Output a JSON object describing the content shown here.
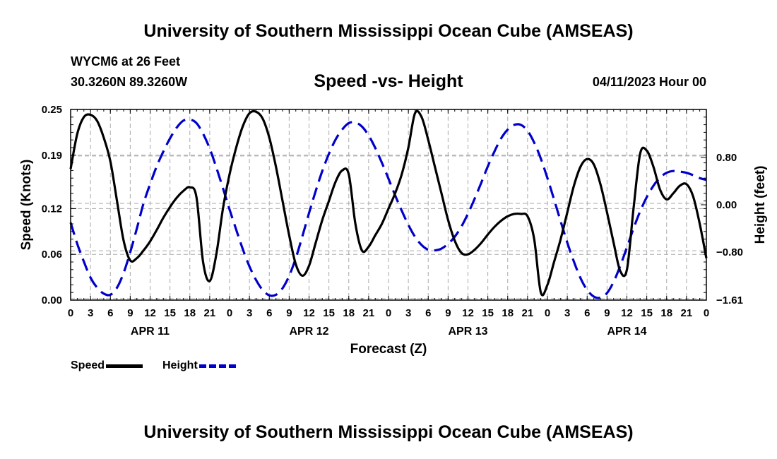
{
  "header": {
    "title": "University of Southern Mississippi Ocean Cube (AMSEAS)",
    "station": "WYCM6 at 26 Feet",
    "coords": "30.3260N  89.3260W",
    "subtitle": "Speed -vs- Height",
    "datetime": "04/11/2023 Hour 00"
  },
  "footer": {
    "title": "University of Southern Mississippi Ocean Cube (AMSEAS)"
  },
  "legend": {
    "speed_label": "Speed",
    "height_label": "Height"
  },
  "colors": {
    "speed": "#000000",
    "height": "#0000cc",
    "grid": "#aaaaaa"
  },
  "chart_data": {
    "type": "line",
    "title": "Speed -vs- Height",
    "xlabel": "Forecast (Z)",
    "ylabel_left": "Speed (Knots)",
    "ylabel_right": "Height (feet)",
    "x_unit": "hours from 04/11/2023 00Z",
    "xlim": [
      0,
      96
    ],
    "ylim_left": [
      0,
      0.25
    ],
    "ylim_right": [
      -1.61,
      1.61
    ],
    "x_ticks": [
      0,
      3,
      6,
      9,
      12,
      15,
      18,
      21,
      24,
      27,
      30,
      33,
      36,
      39,
      42,
      45,
      48,
      51,
      54,
      57,
      60,
      63,
      66,
      69,
      72,
      75,
      78,
      81,
      84,
      87,
      90,
      93,
      96
    ],
    "x_tick_labels": [
      "0",
      "3",
      "6",
      "9",
      "12",
      "15",
      "18",
      "21",
      "0",
      "3",
      "6",
      "9",
      "12",
      "15",
      "18",
      "21",
      "0",
      "3",
      "6",
      "9",
      "12",
      "15",
      "18",
      "21",
      "0",
      "3",
      "6",
      "9",
      "12",
      "15",
      "18",
      "21",
      "0"
    ],
    "date_labels": [
      {
        "x": 12,
        "label": "APR 11"
      },
      {
        "x": 36,
        "label": "APR 12"
      },
      {
        "x": 60,
        "label": "APR 13"
      },
      {
        "x": 84,
        "label": "APR 14"
      }
    ],
    "y_left_ticks": [
      0.0,
      0.06,
      0.12,
      0.19,
      0.25
    ],
    "y_left_tick_labels": [
      "0.00",
      "0.06",
      "0.12",
      "0.19",
      "0.25"
    ],
    "y_right_ticks": [
      -1.61,
      -0.8,
      0.0,
      0.8
    ],
    "y_right_tick_labels": [
      "−1.61",
      "−0.80",
      "0.00",
      "0.80"
    ],
    "series": [
      {
        "name": "Speed",
        "axis": "left",
        "style": "solid",
        "x": [
          0,
          1,
          2,
          3,
          4,
          5,
          6,
          7,
          8,
          9,
          10,
          11,
          12,
          13,
          14,
          15,
          16,
          17,
          18,
          19,
          20,
          21,
          22,
          23,
          24,
          25,
          26,
          27,
          28,
          29,
          30,
          31,
          32,
          33,
          34,
          35,
          36,
          37,
          38,
          39,
          40,
          41,
          42,
          43,
          44,
          45,
          46,
          47,
          48,
          49,
          50,
          51,
          52,
          53,
          54,
          55,
          56,
          57,
          58,
          59,
          60,
          61,
          62,
          63,
          64,
          65,
          66,
          67,
          68,
          69,
          70,
          71,
          72,
          73,
          74,
          75,
          76,
          77,
          78,
          79,
          80,
          81,
          82,
          83,
          84,
          85,
          86,
          87,
          88,
          89,
          90,
          91,
          92,
          93,
          94,
          95,
          96
        ],
        "values": [
          0.172,
          0.218,
          0.24,
          0.243,
          0.235,
          0.213,
          0.182,
          0.13,
          0.078,
          0.052,
          0.055,
          0.065,
          0.077,
          0.092,
          0.108,
          0.122,
          0.134,
          0.143,
          0.148,
          0.135,
          0.05,
          0.025,
          0.06,
          0.12,
          0.165,
          0.2,
          0.228,
          0.245,
          0.247,
          0.238,
          0.213,
          0.175,
          0.13,
          0.085,
          0.047,
          0.032,
          0.045,
          0.075,
          0.105,
          0.13,
          0.155,
          0.17,
          0.165,
          0.1,
          0.065,
          0.07,
          0.085,
          0.1,
          0.12,
          0.14,
          0.165,
          0.2,
          0.245,
          0.24,
          0.21,
          0.175,
          0.14,
          0.105,
          0.078,
          0.062,
          0.06,
          0.066,
          0.075,
          0.086,
          0.096,
          0.104,
          0.11,
          0.113,
          0.113,
          0.11,
          0.08,
          0.01,
          0.02,
          0.05,
          0.08,
          0.115,
          0.15,
          0.175,
          0.185,
          0.178,
          0.152,
          0.115,
          0.075,
          0.038,
          0.04,
          0.12,
          0.192,
          0.196,
          0.175,
          0.145,
          0.132,
          0.14,
          0.15,
          0.152,
          0.136,
          0.1,
          0.055
        ]
      },
      {
        "name": "Height",
        "axis": "right",
        "style": "dashed",
        "x": [
          0,
          1,
          2,
          3,
          4,
          5,
          6,
          7,
          8,
          9,
          10,
          11,
          12,
          13,
          14,
          15,
          16,
          17,
          18,
          19,
          20,
          21,
          22,
          23,
          24,
          25,
          26,
          27,
          28,
          29,
          30,
          31,
          32,
          33,
          34,
          35,
          36,
          37,
          38,
          39,
          40,
          41,
          42,
          43,
          44,
          45,
          46,
          47,
          48,
          49,
          50,
          51,
          52,
          53,
          54,
          55,
          56,
          57,
          58,
          59,
          60,
          61,
          62,
          63,
          64,
          65,
          66,
          67,
          68,
          69,
          70,
          71,
          72,
          73,
          74,
          75,
          76,
          77,
          78,
          79,
          80,
          81,
          82,
          83,
          84,
          85,
          86,
          87,
          88,
          89,
          90,
          91,
          92,
          93,
          94,
          95,
          96
        ],
        "values": [
          -0.3,
          -0.66,
          -0.96,
          -1.23,
          -1.4,
          -1.5,
          -1.52,
          -1.4,
          -1.15,
          -0.8,
          -0.4,
          0.02,
          0.35,
          0.65,
          0.9,
          1.12,
          1.3,
          1.42,
          1.44,
          1.38,
          1.2,
          0.95,
          0.63,
          0.28,
          -0.08,
          -0.42,
          -0.75,
          -1.04,
          -1.27,
          -1.44,
          -1.53,
          -1.52,
          -1.41,
          -1.2,
          -0.9,
          -0.53,
          -0.14,
          0.23,
          0.57,
          0.86,
          1.1,
          1.27,
          1.38,
          1.39,
          1.32,
          1.17,
          0.96,
          0.71,
          0.44,
          0.16,
          -0.1,
          -0.34,
          -0.54,
          -0.68,
          -0.76,
          -0.77,
          -0.74,
          -0.66,
          -0.54,
          -0.37,
          -0.15,
          0.1,
          0.37,
          0.65,
          0.9,
          1.12,
          1.27,
          1.35,
          1.35,
          1.25,
          1.05,
          0.78,
          0.45,
          0.09,
          -0.28,
          -0.64,
          -0.96,
          -1.24,
          -1.44,
          -1.55,
          -1.57,
          -1.49,
          -1.3,
          -1.03,
          -0.72,
          -0.4,
          -0.11,
          0.13,
          0.32,
          0.46,
          0.54,
          0.57,
          0.56,
          0.54,
          0.5,
          0.45,
          0.42
        ]
      }
    ]
  }
}
